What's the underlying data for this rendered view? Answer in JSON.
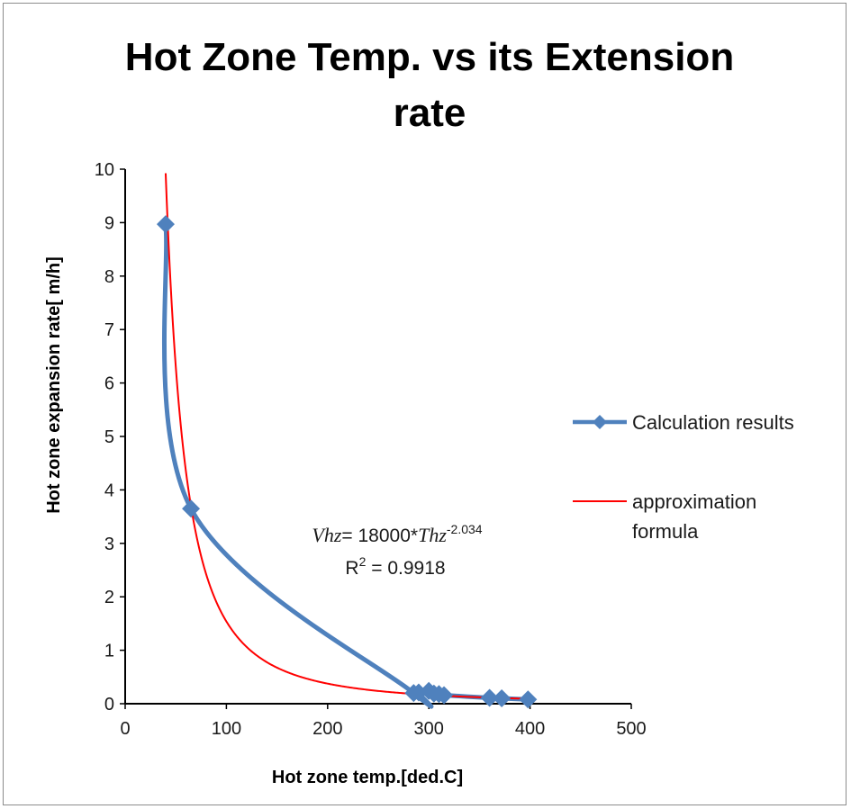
{
  "chart_data": {
    "type": "scatter",
    "title_lines": [
      "Hot Zone Temp. vs its Extension",
      "rate"
    ],
    "xlabel": "Hot zone temp.[ded.C]",
    "ylabel": "Hot zone expansion rate[ m/h]",
    "xlim": [
      0,
      500
    ],
    "ylim": [
      0,
      10
    ],
    "x_ticks": [
      "0",
      "100",
      "200",
      "300",
      "400",
      "500"
    ],
    "y_ticks": [
      "0",
      "1",
      "2",
      "3",
      "4",
      "5",
      "6",
      "7",
      "8",
      "9",
      "10"
    ],
    "grid": false,
    "legend_position": "right",
    "series": [
      {
        "name": "Calculation results",
        "style": "smooth-line-with-diamond-markers",
        "color": "#4F81BD",
        "x": [
          40,
          65,
          285,
          290,
          300,
          305,
          310,
          315,
          360,
          372,
          398
        ],
        "y": [
          8.97,
          3.65,
          0.2,
          0.21,
          0.24,
          0.19,
          0.18,
          0.16,
          0.11,
          0.1,
          0.08
        ]
      },
      {
        "name": "approximation formula",
        "style": "line",
        "color": "#FF0000",
        "formula": {
          "a": 18000,
          "b": -2.034
        },
        "x_range": [
          40,
          400
        ]
      }
    ],
    "annotation": {
      "eq_var1": "Vhz",
      "eq_mid": "= 18000*",
      "eq_var2": "Thz",
      "eq_exp": "-2.034",
      "r2_label": "R",
      "r2_sup": "2",
      "r2_value": " = 0.9918"
    }
  }
}
